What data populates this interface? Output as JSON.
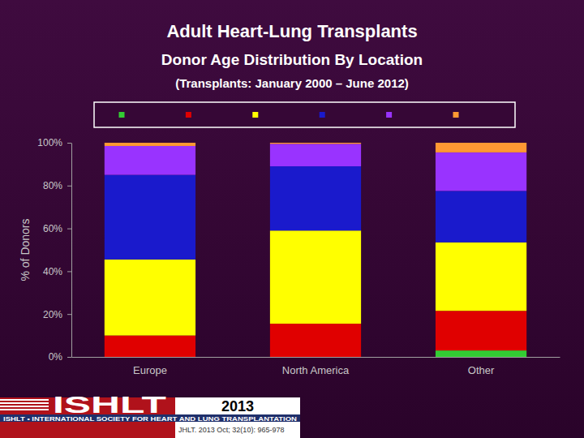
{
  "chart_data": {
    "type": "bar",
    "stacked": true,
    "title": "Adult Heart-Lung Transplants",
    "subtitle": [
      "Donor Age Distribution By Location",
      "(Transplants: January 2000 – June 2012)"
    ],
    "y_label": "% of Donors",
    "categories": [
      "Europe",
      "North America",
      "Other"
    ],
    "series": [
      {
        "color": "#33cc33",
        "values": [
          0,
          0,
          3
        ]
      },
      {
        "color": "#e00000",
        "values": [
          10,
          15.5,
          18.5
        ]
      },
      {
        "color": "#ffff00",
        "values": [
          35.5,
          43.5,
          32
        ]
      },
      {
        "color": "#1a1acc",
        "values": [
          39.5,
          30,
          24
        ]
      },
      {
        "color": "#9933ff",
        "values": [
          13.5,
          10.5,
          18
        ]
      },
      {
        "color": "#ff9933",
        "values": [
          1.5,
          0.5,
          4.5
        ]
      }
    ],
    "ylim": [
      0,
      100
    ],
    "yticks": [
      {
        "value": 0,
        "label": "0%"
      },
      {
        "value": 20,
        "label": "20%"
      },
      {
        "value": 40,
        "label": "40%"
      },
      {
        "value": 60,
        "label": "60%"
      },
      {
        "value": 80,
        "label": "80%"
      },
      {
        "value": 100,
        "label": "100%"
      }
    ],
    "grid": false,
    "legend": "top"
  },
  "footer": {
    "logo": "ISHLT",
    "society": "ISHLT • INTERNATIONAL SOCIETY FOR HEART AND LUNG TRANSPLANTATION",
    "year": "2013",
    "citation": "JHLT. 2013 Oct; 32(10): 965-978"
  }
}
